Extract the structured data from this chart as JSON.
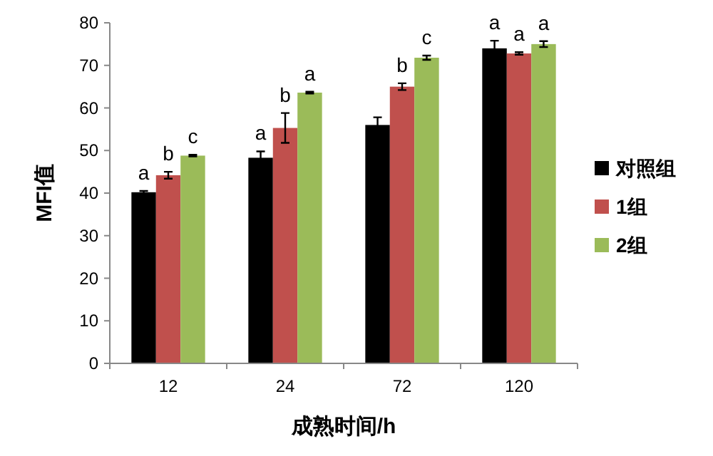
{
  "chart_data": {
    "type": "bar",
    "xlabel": "成熟时间/h",
    "ylabel": "MFI值",
    "categories": [
      "12",
      "24",
      "72",
      "120"
    ],
    "ylim": [
      0,
      80
    ],
    "yticks": [
      0,
      10,
      20,
      30,
      40,
      50,
      60,
      70,
      80
    ],
    "grid": false,
    "legend": "right",
    "series": [
      {
        "name": "对照组",
        "color": "#000000",
        "values": [
          40.2,
          48.3,
          56,
          74
        ],
        "errors": [
          0.3,
          1.5,
          1.8,
          1.8
        ],
        "value_labels": [
          "a",
          "a",
          null,
          "a"
        ]
      },
      {
        "name": "1组",
        "color": "#c0504d",
        "values": [
          44.2,
          55.3,
          65,
          72.8
        ],
        "errors": [
          0.8,
          3.5,
          0.8,
          0.3
        ],
        "value_labels": [
          "b",
          "b",
          "b",
          "a"
        ]
      },
      {
        "name": "2组",
        "color": "#9bbb59",
        "values": [
          48.8,
          63.6,
          71.8,
          75
        ],
        "errors": [
          0.2,
          0.2,
          0.5,
          0.7
        ],
        "value_labels": [
          "c",
          "a",
          "c",
          "a"
        ]
      }
    ]
  }
}
